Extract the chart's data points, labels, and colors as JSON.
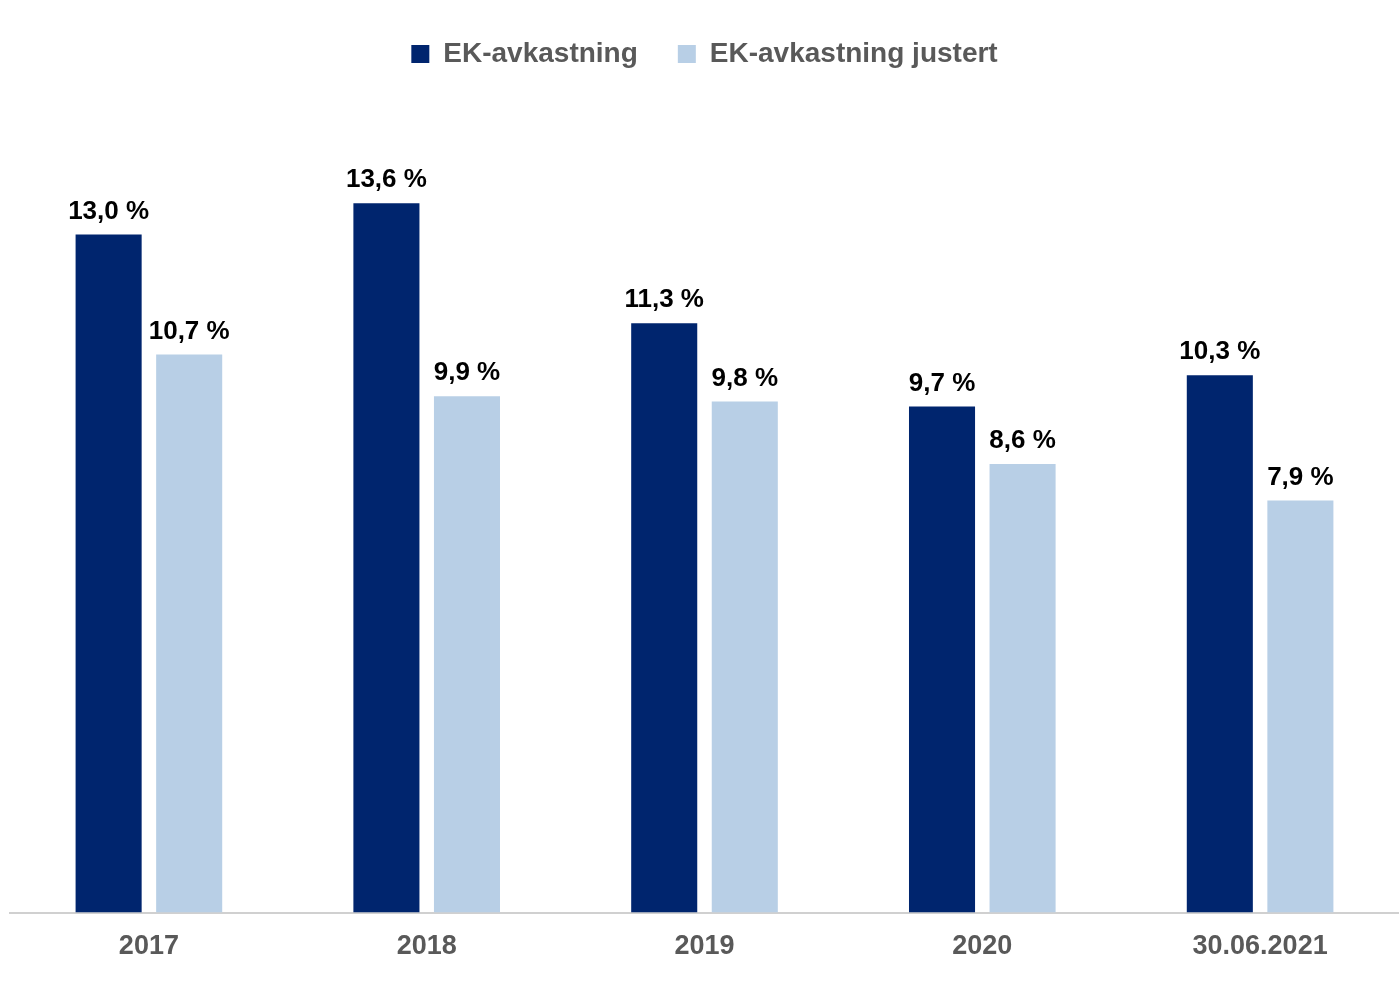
{
  "chart_data": {
    "type": "bar",
    "categories": [
      "2017",
      "2018",
      "2019",
      "2020",
      "30.06.2021"
    ],
    "series": [
      {
        "name": "EK-avkastning",
        "color": "#00256e",
        "values": [
          13.0,
          13.6,
          11.3,
          9.7,
          10.3
        ],
        "value_labels": [
          "13,0 %",
          "13,6 %",
          "11,3 %",
          "9,7 %",
          "10,3 %"
        ]
      },
      {
        "name": "EK-avkastning justert",
        "color": "#b8cfe6",
        "values": [
          10.7,
          9.9,
          9.8,
          8.6,
          7.9
        ],
        "value_labels": [
          "10,7 %",
          "9,9 %",
          "9,8 %",
          "8,6 %",
          "7,9 %"
        ]
      }
    ],
    "tick_labels": "x",
    "grid": false,
    "legend": "top"
  }
}
